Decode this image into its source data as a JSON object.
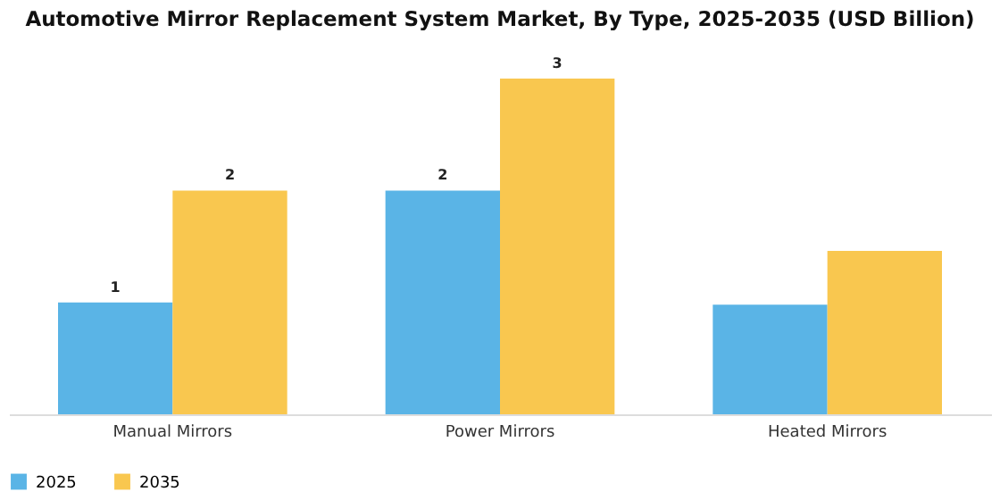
{
  "chart_data": {
    "type": "bar",
    "title": "Automotive Mirror Replacement System Market, By Type, 2025-2035 (USD Billion)",
    "categories": [
      "Manual Mirrors",
      "Power Mirrors",
      "Heated Mirrors"
    ],
    "legend": "bottom",
    "series": [
      {
        "name": "2025",
        "color": "#5ab4e6",
        "values": [
          1,
          2,
          0.98
        ],
        "value_labels": [
          "1",
          "2",
          null
        ]
      },
      {
        "name": "2035",
        "color": "#f9c74f",
        "values": [
          2,
          3,
          1.46
        ],
        "value_labels": [
          "2",
          "3",
          null
        ]
      }
    ]
  }
}
